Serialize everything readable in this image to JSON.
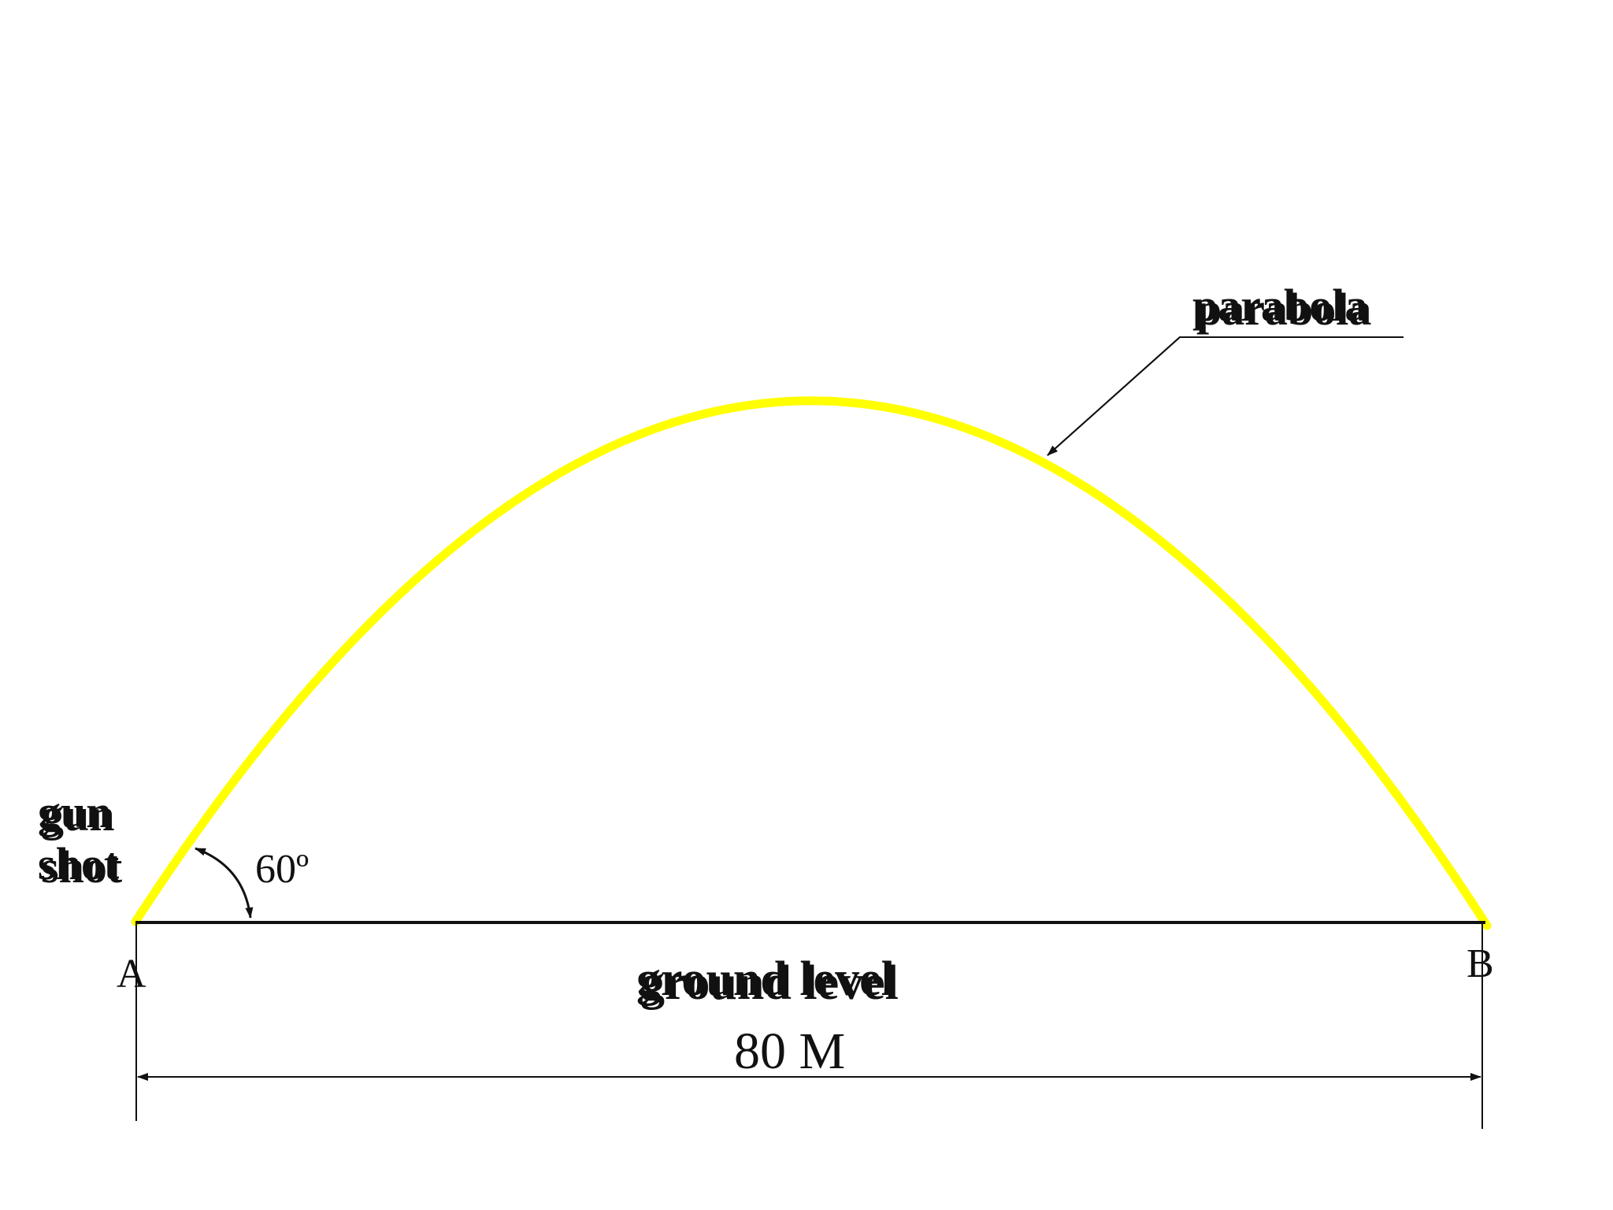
{
  "labels": {
    "parabola": "parabola",
    "gun_line1": "gun",
    "gun_line2": "shot",
    "angle": "60º",
    "point_a": "A",
    "point_b": "B",
    "ground": "ground level",
    "distance": "80 M"
  },
  "colors": {
    "curve": "#ffff00",
    "line": "#111111",
    "background": "#ffffff",
    "text_shadow": "#b0b0b0"
  }
}
